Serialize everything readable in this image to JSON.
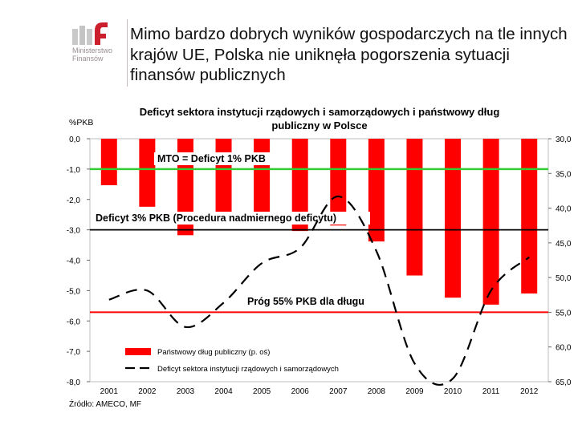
{
  "logo": {
    "mark": "mf",
    "name": "Ministerstwo\nFinansów"
  },
  "headline": "Mimo bardzo dobrych wyników gospodarczych na tle innych krajów UE, Polska nie uniknęła pogorszenia sytuacji finansów publicznych",
  "source": "Źródło: AMECO, MF",
  "colors": {
    "bars": "#ff0000",
    "mto_line": "#33cc33",
    "threshold_55": "#ff0000",
    "deficit_line": "#000000"
  },
  "chart_data": {
    "type": "bar",
    "title": "Deficyt sektora instytucji rządowych i samorządowych i państwowy dług publiczny w Polsce",
    "ylabel": "%PKB",
    "categories": [
      "2001",
      "2002",
      "2003",
      "2004",
      "2005",
      "2006",
      "2007",
      "2008",
      "2009",
      "2010",
      "2011",
      "2012"
    ],
    "left_axis": {
      "ticks": [
        "0,0",
        "-1,0",
        "-2,0",
        "-3,0",
        "-4,0",
        "-5,0",
        "-6,0",
        "-7,0",
        "-8,0"
      ],
      "ylim": [
        -8,
        0
      ]
    },
    "right_axis": {
      "ticks": [
        "30,0",
        "35,0",
        "40,0",
        "45,0",
        "50,0",
        "55,0",
        "60,0",
        "65,0"
      ],
      "ylim": [
        30,
        65
      ],
      "inverted": true
    },
    "series": [
      {
        "name": "Państwowy dług publiczny (p. oś)",
        "type": "bar",
        "axis": "right",
        "values": [
          36.7,
          39.8,
          43.9,
          41.8,
          42.2,
          43.3,
          42.5,
          44.8,
          49.7,
          52.9,
          53.9,
          52.3
        ]
      },
      {
        "name": "Deficyt sektora instytucji rządowych i samorządowych",
        "type": "line",
        "style": "dashed",
        "axis": "left",
        "values": [
          -5.3,
          -5.0,
          -6.2,
          -5.4,
          -4.1,
          -3.6,
          -1.9,
          -3.7,
          -7.4,
          -7.9,
          -5.0,
          -3.9
        ]
      }
    ],
    "reference_lines": [
      {
        "label": "MTO = Deficyt 1% PKB",
        "axis": "left",
        "value": -1.0
      },
      {
        "label": "Deficyt 3% PKB (Procedura nadmiernego deficytu)",
        "axis": "left",
        "value": -3.0
      },
      {
        "label": "Próg 55% PKB dla długu",
        "axis": "right",
        "value": 55.0
      }
    ],
    "legend": [
      {
        "label": "Państwowy dług publiczny (p. oś)",
        "kind": "bar"
      },
      {
        "label": "Deficyt sektora instytucji rządowych i samorządowych",
        "kind": "dashed-line"
      }
    ],
    "legend_position": "bottom-left"
  }
}
